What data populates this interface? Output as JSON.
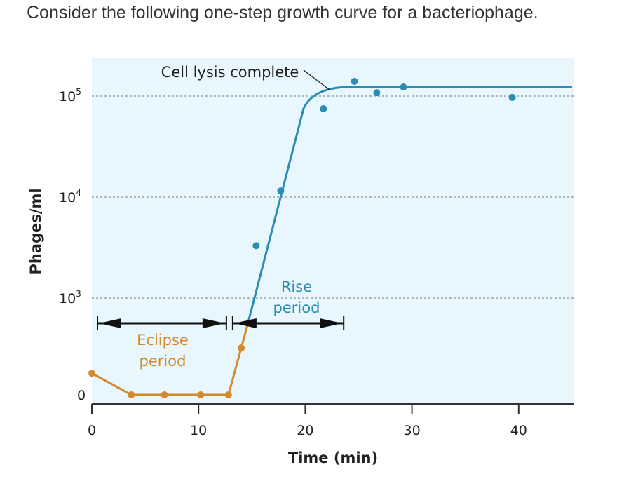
{
  "question": "Consider the following one-step growth curve for a bacteriophage.",
  "chart_data": {
    "type": "line",
    "title": "",
    "xlabel": "Time (min)",
    "ylabel": "Phages/ml",
    "xlim": [
      0,
      45
    ],
    "x_ticks": [
      "0",
      "10",
      "20",
      "30",
      "40"
    ],
    "y_scale": "log",
    "y_ticks": [
      {
        "label": "0",
        "value": 0
      },
      {
        "label": "10",
        "exp": "3",
        "value": 1000
      },
      {
        "label": "10",
        "exp": "4",
        "value": 10000
      },
      {
        "label": "10",
        "exp": "5",
        "value": 100000
      }
    ],
    "grid": "dotted horizontal at 10^3, 10^4, 10^5",
    "background": "#e8f6fd",
    "series": [
      {
        "color": "#d38a2f",
        "points": [
          [
            0,
            180
          ],
          [
            3.7,
            0
          ],
          [
            6.8,
            0
          ],
          [
            10.2,
            0
          ],
          [
            12.8,
            0
          ],
          [
            14.0,
            320
          ]
        ]
      },
      {
        "color": "#2a8db3",
        "points": [
          [
            15.4,
            3300
          ],
          [
            17.7,
            11500
          ],
          [
            21.7,
            75000
          ],
          [
            24.6,
            140000
          ],
          [
            26.7,
            108000
          ],
          [
            29.2,
            123000
          ],
          [
            39.4,
            97000
          ]
        ],
        "fit_curve": [
          [
            14.6,
            550
          ],
          [
            20.1,
            59000
          ],
          [
            24.2,
            123000
          ],
          [
            45,
            123000
          ]
        ]
      }
    ],
    "annotations": {
      "lysis": "Cell lysis complete",
      "eclipse_1": "Eclipse",
      "eclipse_2": "period",
      "eclipse_range": [
        0,
        13
      ],
      "rise_1": "Rise",
      "rise_2": "period",
      "rise_range": [
        13,
        23.6
      ]
    }
  }
}
